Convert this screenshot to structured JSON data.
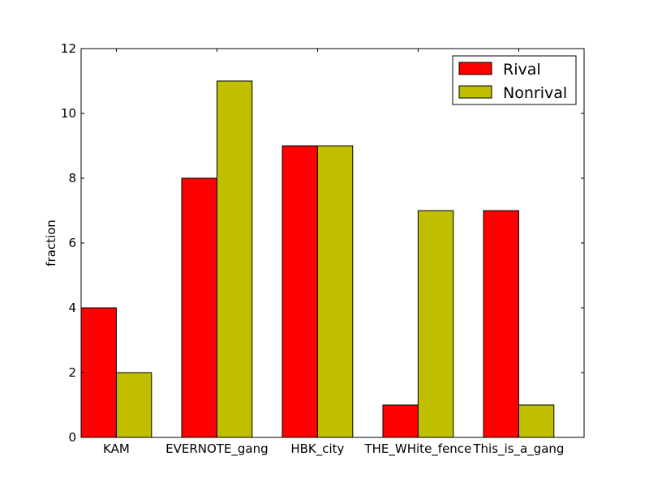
{
  "chart_data": {
    "type": "bar",
    "categories": [
      "KAM",
      "EVERNOTE_gang",
      "HBK_city",
      "THE_WHite_fence",
      "This_is_a_gang"
    ],
    "series": [
      {
        "name": "Rival",
        "values": [
          4,
          8,
          9,
          1,
          7
        ],
        "color": "#ff0000"
      },
      {
        "name": "Nonrival",
        "values": [
          2,
          11,
          9,
          7,
          1
        ],
        "color": "#bfbf00"
      }
    ],
    "title": "",
    "xlabel": "",
    "ylabel": "fraction",
    "ylim": [
      0,
      12
    ],
    "yticks": [
      "0",
      "2",
      "4",
      "6",
      "8",
      "10",
      "12"
    ],
    "grid": false,
    "legend_position": "top-right"
  }
}
